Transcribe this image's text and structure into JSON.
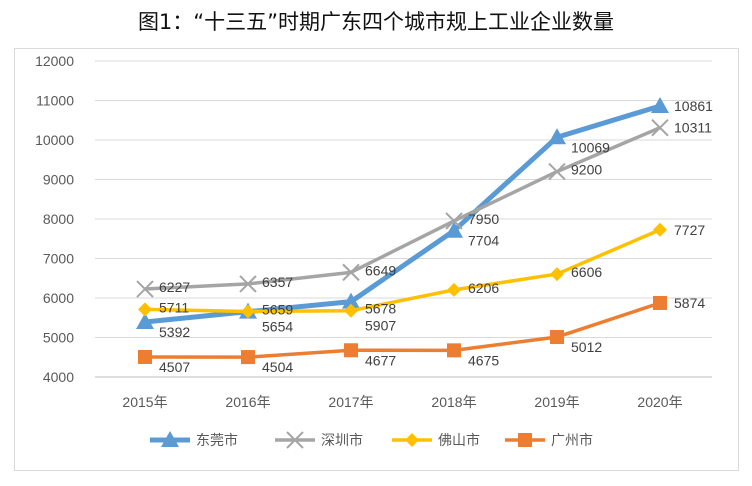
{
  "chart_data": {
    "type": "line",
    "title": "图1：“十三五”时期广东四个城市规上工业企业数量",
    "categories": [
      "2015年",
      "2016年",
      "2017年",
      "2018年",
      "2019年",
      "2020年"
    ],
    "ylim": [
      4000,
      12000
    ],
    "yticks": [
      4000,
      5000,
      6000,
      7000,
      8000,
      9000,
      10000,
      11000,
      12000
    ],
    "grid": true,
    "legend": "bottom",
    "series": [
      {
        "name": "东莞市",
        "values": [
          5392,
          5654,
          5907,
          7704,
          10069,
          10861
        ],
        "color": "#5b9bd5",
        "marker": "triangle"
      },
      {
        "name": "深圳市",
        "values": [
          6227,
          6357,
          6649,
          7950,
          9200,
          10311
        ],
        "color": "#a5a5a5",
        "marker": "x"
      },
      {
        "name": "佛山市",
        "values": [
          5711,
          5659,
          5678,
          6206,
          6606,
          7727
        ],
        "color": "#ffc000",
        "marker": "diamond"
      },
      {
        "name": "广州市",
        "values": [
          4507,
          4504,
          4677,
          4675,
          5012,
          5874
        ],
        "color": "#ed7d31",
        "marker": "square"
      }
    ]
  }
}
